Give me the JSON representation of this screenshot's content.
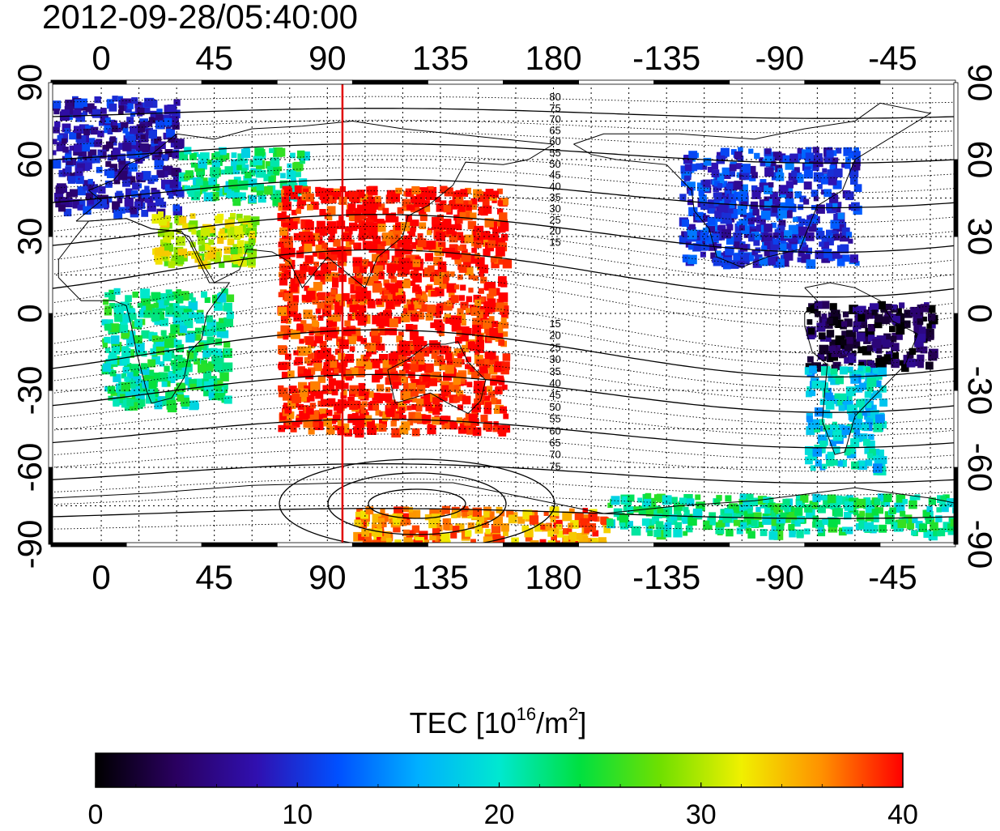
{
  "title": "2012-09-28/05:40:00",
  "map": {
    "top_lon_ticks": [
      "0",
      "45",
      "90",
      "135",
      "180",
      "-135",
      "-90",
      "-45"
    ],
    "bottom_lon_ticks": [
      "0",
      "45",
      "90",
      "135",
      "180",
      "-135",
      "-90",
      "-45"
    ],
    "left_lat_ticks": [
      "90",
      "60",
      "30",
      "0",
      "-30",
      "-60",
      "-90"
    ],
    "right_lat_ticks": [
      "90",
      "60",
      "30",
      "0",
      "-30",
      "-60",
      "-90"
    ],
    "lon_range": [
      -20,
      340
    ],
    "lat_range": [
      -90,
      90
    ],
    "terminator_lon": 96,
    "terminator_color": "#e00000",
    "contour_labels_north": [
      "80",
      "75",
      "70",
      "65",
      "60",
      "55",
      "50",
      "45",
      "40",
      "35",
      "30",
      "25",
      "20",
      "15"
    ],
    "contour_labels_south": [
      "15",
      "20",
      "25",
      "30",
      "35",
      "40",
      "45",
      "50",
      "55",
      "60",
      "65",
      "70",
      "75"
    ]
  },
  "colorbar": {
    "label_prefix": "TEC  [10",
    "label_exp1": "16",
    "label_mid": "/m",
    "label_exp2": "2",
    "label_suffix": "]",
    "ticks": [
      "0",
      "10",
      "20",
      "30",
      "40"
    ],
    "range": [
      0,
      40
    ],
    "stops": [
      "#000000",
      "#2a0060",
      "#3010b0",
      "#0050ff",
      "#00b0ff",
      "#00e8d0",
      "#00e040",
      "#70e000",
      "#f0f000",
      "#ff9000",
      "#ff0000"
    ]
  },
  "chart_data": {
    "type": "heatmap",
    "title": "2012-09-28/05:40:00",
    "colorbar_label": "TEC [10^16/m^2]",
    "value_range": [
      0,
      40
    ],
    "lon_range": [
      -20,
      340
    ],
    "lat_range": [
      -90,
      90
    ],
    "regions": [
      {
        "lon": [
          -20,
          30
        ],
        "lat": [
          40,
          85
        ],
        "tec": 8
      },
      {
        "lon": [
          30,
          80
        ],
        "lat": [
          45,
          65
        ],
        "tec": 22
      },
      {
        "lon": [
          20,
          60
        ],
        "lat": [
          20,
          40
        ],
        "tec": 30
      },
      {
        "lon": [
          0,
          50
        ],
        "lat": [
          -35,
          10
        ],
        "tec": 22
      },
      {
        "lon": [
          70,
          160
        ],
        "lat": [
          -45,
          50
        ],
        "tec": 40
      },
      {
        "lon": [
          230,
          300
        ],
        "lat": [
          20,
          65
        ],
        "tec": 10
      },
      {
        "lon": [
          280,
          330
        ],
        "lat": [
          -20,
          5
        ],
        "tec": 3
      },
      {
        "lon": [
          280,
          310
        ],
        "lat": [
          -60,
          -20
        ],
        "tec": 18
      },
      {
        "lon": [
          100,
          200
        ],
        "lat": [
          -90,
          -75
        ],
        "tec": 36
      },
      {
        "lon": [
          200,
          340
        ],
        "lat": [
          -85,
          -70
        ],
        "tec": 22
      }
    ]
  }
}
